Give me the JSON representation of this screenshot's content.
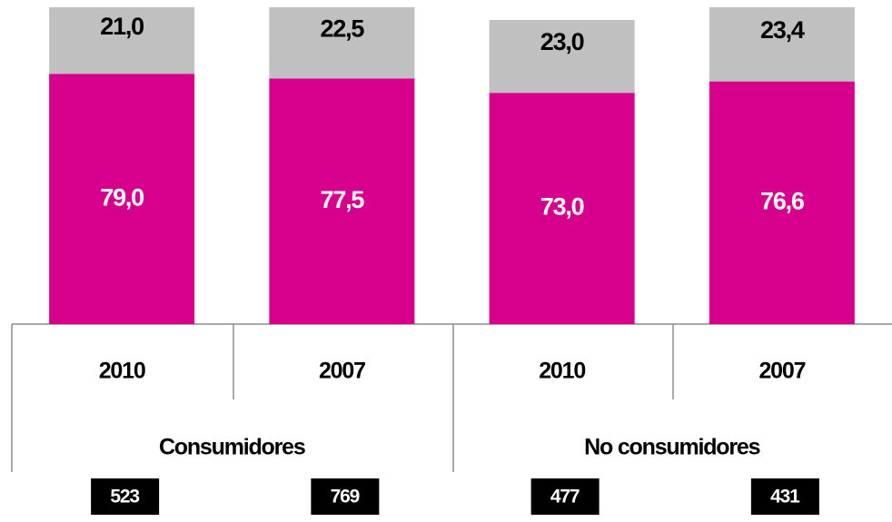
{
  "chart_data": {
    "type": "bar",
    "stacked": true,
    "categories": [
      "2010",
      "2007",
      "2010",
      "2007"
    ],
    "groups": [
      "Consumidores",
      "No consumidores"
    ],
    "sample_sizes": [
      523,
      769,
      477,
      431
    ],
    "series": [
      {
        "color": "#d6008d",
        "values": [
          79.0,
          77.5,
          73.0,
          76.6
        ],
        "value_labels": [
          "79,0",
          "77,5",
          "73,0",
          "76,6"
        ]
      },
      {
        "color": "#c0c0c0",
        "values": [
          21.0,
          22.5,
          23.0,
          23.4
        ],
        "value_labels": [
          "21,0",
          "22,5",
          "23,0",
          "23,4"
        ]
      }
    ]
  }
}
